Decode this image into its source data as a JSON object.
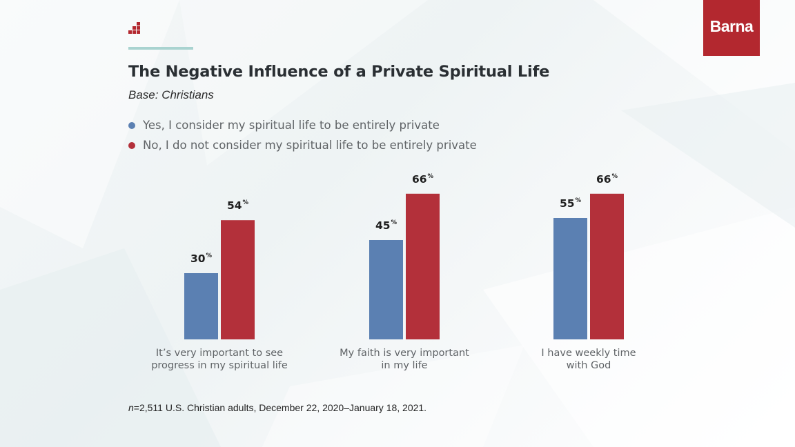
{
  "brand": {
    "logo_text": "Barna",
    "logo_color": "#b3282f",
    "accent_rule_color": "#a9d3d0",
    "mark_color": "#b3282f",
    "mark_icon": "bar-steps-icon"
  },
  "header": {
    "title": "The Negative Influence of a Private Spiritual Life",
    "subtitle": "Base: Christians"
  },
  "legend": [
    {
      "label": "Yes, I consider my spiritual life to be entirely private",
      "color": "#5b80b2"
    },
    {
      "label": "No, I do not consider my spiritual life to be entirely private",
      "color": "#b3303a"
    }
  ],
  "chart_data": {
    "type": "bar",
    "title": "The Negative Influence of a Private Spiritual Life",
    "subtitle": "Base: Christians",
    "xlabel": "",
    "ylabel": "",
    "ylim": [
      0,
      100
    ],
    "value_suffix": "%",
    "grid": false,
    "legend_position": "top-left",
    "categories": [
      [
        "It’s very important to see",
        "progress in my spiritual life"
      ],
      [
        "My faith is very important",
        "in my life"
      ],
      [
        "I have weekly time",
        "with God"
      ]
    ],
    "series": [
      {
        "name": "Yes, I consider my spiritual life to be entirely private",
        "color": "#5b80b2",
        "values": [
          30,
          45,
          55
        ]
      },
      {
        "name": "No, I do not consider my spiritual life to be entirely private",
        "color": "#b3303a",
        "values": [
          54,
          66,
          66
        ]
      }
    ]
  },
  "footnote": {
    "n_label": "n",
    "text": "=2,511 U.S. Christian adults, December 22, 2020–January 18, 2021."
  }
}
